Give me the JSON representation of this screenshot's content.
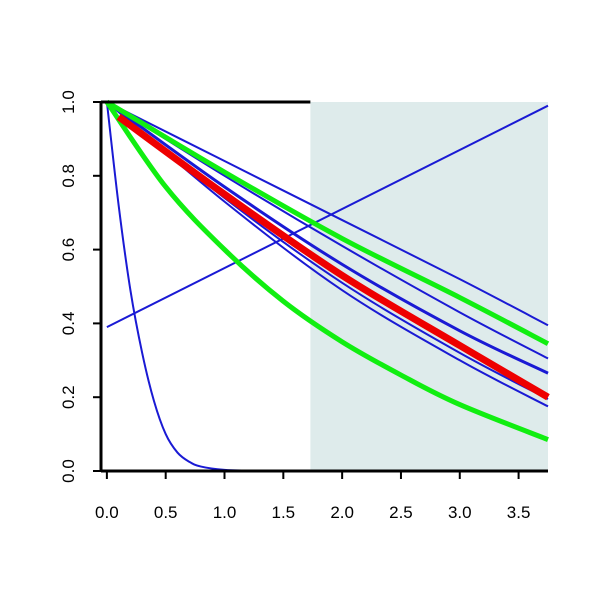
{
  "chart_data": {
    "type": "line",
    "title": "",
    "xlabel": "",
    "ylabel": "",
    "xlim": [
      -0.05,
      3.75
    ],
    "ylim": [
      0.0,
      1.0
    ],
    "grid": false,
    "legend": "none",
    "x_ticks": [
      "0.0",
      "0.5",
      "1.0",
      "1.5",
      "2.0",
      "2.5",
      "3.0",
      "3.5"
    ],
    "y_ticks": [
      "0.0",
      "0.2",
      "0.4",
      "0.6",
      "0.8",
      "1.0"
    ],
    "shaded_region": {
      "x_from": 1.73,
      "x_to": 3.75,
      "color": "#deebeb"
    },
    "colors": {
      "blue": "#1a1ad4",
      "green": "#11ee11",
      "red": "#ee0000",
      "axis": "#000000"
    },
    "series": [
      {
        "color": "#1a1ad4",
        "weight": "thin",
        "x": [
          0.0,
          0.1,
          0.2,
          0.3,
          0.4,
          0.5,
          0.6,
          0.7,
          0.8,
          1.0,
          1.2,
          1.5,
          2.0,
          3.0,
          3.75
        ],
        "y": [
          1.0,
          0.72,
          0.49,
          0.32,
          0.19,
          0.1,
          0.05,
          0.025,
          0.012,
          0.003,
          0.001,
          0.0,
          0.0,
          0.0,
          0.0
        ]
      },
      {
        "color": "#1a1ad4",
        "weight": "thin",
        "x": [
          0.0,
          3.75
        ],
        "y": [
          0.39,
          0.99
        ]
      },
      {
        "color": "#1a1ad4",
        "weight": "thin",
        "x": [
          0.0,
          1.0,
          2.0,
          3.0,
          3.75
        ],
        "y": [
          1.0,
          0.84,
          0.68,
          0.52,
          0.395
        ]
      },
      {
        "color": "#1a1ad4",
        "weight": "thin",
        "x": [
          0.0,
          1.0,
          2.0,
          3.0,
          3.75
        ],
        "y": [
          1.0,
          0.8,
          0.61,
          0.43,
          0.305
        ]
      },
      {
        "color": "#1a1ad4",
        "weight": "medium",
        "x": [
          0.0,
          1.0,
          2.0,
          3.0,
          3.75
        ],
        "y": [
          1.0,
          0.77,
          0.56,
          0.38,
          0.265
        ]
      },
      {
        "color": "#1a1ad4",
        "weight": "thin",
        "x": [
          0.0,
          1.0,
          2.0,
          3.0,
          3.75
        ],
        "y": [
          1.0,
          0.74,
          0.51,
          0.32,
          0.195
        ]
      },
      {
        "color": "#1a1ad4",
        "weight": "thin",
        "x": [
          0.0,
          1.0,
          2.0,
          3.0,
          3.75
        ],
        "y": [
          1.0,
          0.73,
          0.49,
          0.3,
          0.175
        ]
      },
      {
        "color": "#11ee11",
        "weight": "thick",
        "x": [
          0.0,
          1.0,
          2.0,
          3.0,
          3.75
        ],
        "y": [
          1.0,
          0.81,
          0.63,
          0.47,
          0.345
        ]
      },
      {
        "color": "#11ee11",
        "weight": "thick",
        "x": [
          0.0,
          0.5,
          1.0,
          1.5,
          2.0,
          2.5,
          3.0,
          3.75
        ],
        "y": [
          1.0,
          0.77,
          0.6,
          0.46,
          0.35,
          0.26,
          0.18,
          0.085
        ]
      },
      {
        "color": "#ee0000",
        "weight": "heavy",
        "x": [
          0.1,
          1.0,
          2.0,
          3.0,
          3.75
        ],
        "y": [
          0.96,
          0.75,
          0.53,
          0.34,
          0.2
        ]
      }
    ]
  }
}
